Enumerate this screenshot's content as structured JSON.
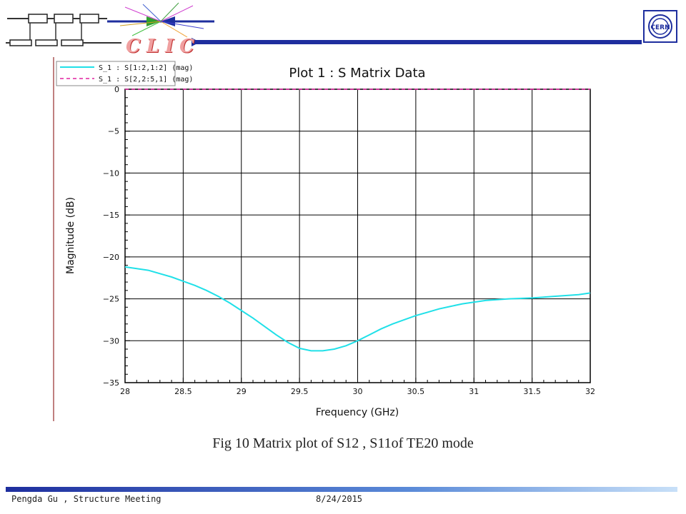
{
  "header": {
    "logo_text": "CLIC",
    "cern_logo_text": "CERN",
    "colors": {
      "header_blue": "#1e2e9e",
      "accent_red": "#c03030"
    }
  },
  "chart_data": {
    "type": "line",
    "title": "Plot 1 : S Matrix Data",
    "xlabel": "Frequency (GHz)",
    "ylabel": "Magnitude (dB)",
    "xlim": [
      28,
      32
    ],
    "ylim": [
      -35,
      0
    ],
    "grid": true,
    "legend_placement": "top-left",
    "x_ticks": [
      "28",
      "28.5",
      "29",
      "29.5",
      "30",
      "30.5",
      "31",
      "31.5",
      "32"
    ],
    "y_ticks": [
      "0",
      "−5",
      "−10",
      "−15",
      "−20",
      "−25",
      "−30",
      "−35"
    ],
    "series": [
      {
        "name": "S_1 : S[1:2,1:2] (mag)",
        "color": "#20e0e8",
        "style": "solid",
        "x": [
          28.0,
          28.1,
          28.2,
          28.3,
          28.4,
          28.5,
          28.6,
          28.7,
          28.8,
          28.9,
          29.0,
          29.1,
          29.2,
          29.3,
          29.4,
          29.5,
          29.6,
          29.7,
          29.8,
          29.9,
          30.0,
          30.1,
          30.2,
          30.3,
          30.4,
          30.5,
          30.6,
          30.7,
          30.8,
          30.9,
          31.0,
          31.1,
          31.2,
          31.3,
          31.4,
          31.5,
          31.6,
          31.7,
          31.8,
          31.9,
          32.0
        ],
        "y": [
          -21.2,
          -21.4,
          -21.6,
          -22.0,
          -22.4,
          -22.9,
          -23.4,
          -24.0,
          -24.7,
          -25.5,
          -26.4,
          -27.3,
          -28.3,
          -29.3,
          -30.2,
          -30.9,
          -31.2,
          -31.2,
          -31.0,
          -30.6,
          -30.0,
          -29.3,
          -28.6,
          -28.0,
          -27.5,
          -27.0,
          -26.6,
          -26.2,
          -25.9,
          -25.6,
          -25.4,
          -25.2,
          -25.1,
          -25.0,
          -24.95,
          -24.9,
          -24.8,
          -24.7,
          -24.6,
          -24.5,
          -24.3
        ]
      },
      {
        "name": "S_1 : S[2,2:5,1] (mag)",
        "color": "#e020a0",
        "style": "dashed",
        "x": [
          28.0,
          32.0
        ],
        "y": [
          0.0,
          0.0
        ]
      }
    ]
  },
  "caption": "Fig 10  Matrix plot of S12 , S11of TE20 mode",
  "footer": {
    "author": "Pengda Gu , Structure Meeting",
    "date": "8/24/2015"
  }
}
